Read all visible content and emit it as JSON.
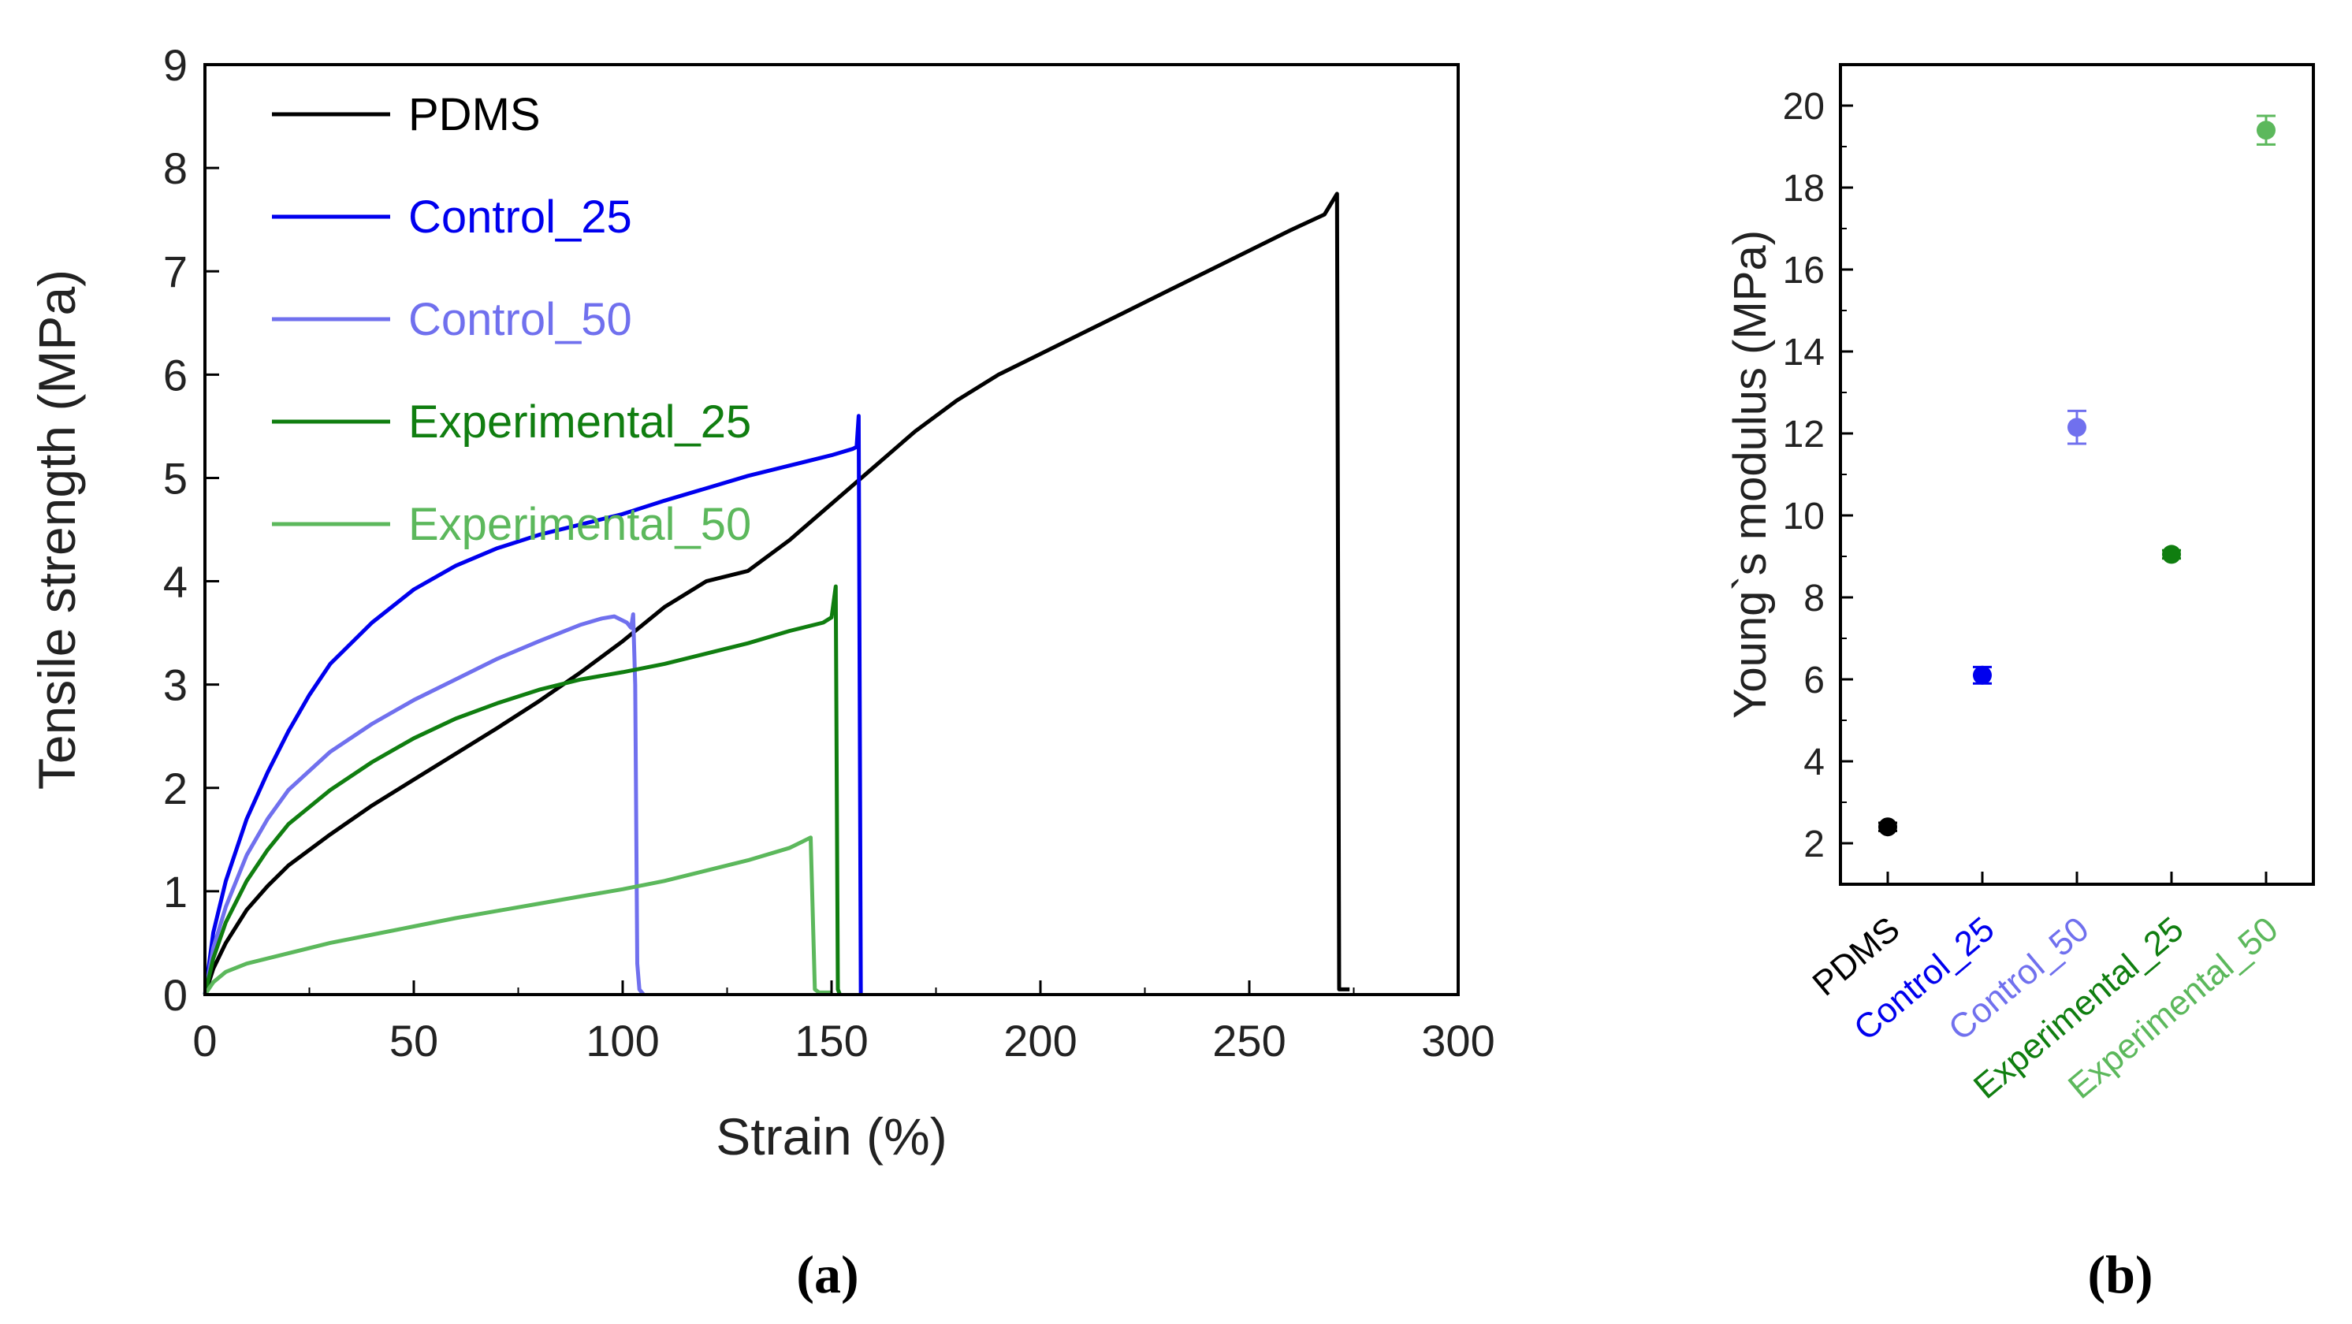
{
  "chart_data": [
    {
      "type": "line",
      "panel": "a",
      "panel_label": "(a)",
      "xlabel": "Strain (%)",
      "ylabel": "Tensile strength (MPa)",
      "xlim": [
        0,
        300
      ],
      "ylim": [
        0,
        9
      ],
      "x_ticks": [
        0,
        50,
        100,
        150,
        200,
        250,
        300
      ],
      "y_ticks": [
        0,
        1,
        2,
        3,
        4,
        5,
        6,
        7,
        8,
        9
      ],
      "grid": false,
      "legend_position": "top-left",
      "series": [
        {
          "name": "PDMS",
          "color": "#000000",
          "x": [
            0,
            2,
            5,
            10,
            15,
            20,
            30,
            40,
            50,
            60,
            70,
            80,
            90,
            100,
            110,
            120,
            130,
            140,
            150,
            160,
            170,
            180,
            190,
            200,
            210,
            220,
            230,
            240,
            250,
            260,
            268,
            271,
            271.5,
            271.5,
            274
          ],
          "y": [
            0,
            0.25,
            0.5,
            0.82,
            1.05,
            1.25,
            1.55,
            1.83,
            2.08,
            2.33,
            2.58,
            2.84,
            3.12,
            3.42,
            3.75,
            4.0,
            4.1,
            4.4,
            4.75,
            5.1,
            5.45,
            5.75,
            6.0,
            6.2,
            6.4,
            6.6,
            6.8,
            7.0,
            7.2,
            7.4,
            7.55,
            7.75,
            0.05,
            0.05,
            0.05
          ]
        },
        {
          "name": "Control_25",
          "color": "#0000ee",
          "x": [
            0,
            2,
            5,
            10,
            15,
            20,
            25,
            30,
            40,
            50,
            60,
            70,
            80,
            90,
            100,
            110,
            120,
            130,
            140,
            150,
            155,
            156,
            156.5,
            157,
            157
          ],
          "y": [
            0,
            0.6,
            1.1,
            1.7,
            2.15,
            2.55,
            2.9,
            3.2,
            3.6,
            3.92,
            4.15,
            4.32,
            4.45,
            4.55,
            4.65,
            4.78,
            4.9,
            5.02,
            5.12,
            5.22,
            5.28,
            5.3,
            5.6,
            0.05,
            0
          ]
        },
        {
          "name": "Control_50",
          "color": "#7070ee",
          "x": [
            0,
            2,
            5,
            10,
            15,
            20,
            30,
            40,
            50,
            60,
            70,
            80,
            90,
            95,
            98,
            101,
            102,
            102.5,
            103,
            103.5,
            104,
            105
          ],
          "y": [
            0,
            0.45,
            0.85,
            1.35,
            1.7,
            1.98,
            2.35,
            2.62,
            2.85,
            3.05,
            3.25,
            3.42,
            3.58,
            3.64,
            3.66,
            3.6,
            3.55,
            3.68,
            3.0,
            0.3,
            0.05,
            0
          ]
        },
        {
          "name": "Experimental_25",
          "color": "#107e10",
          "x": [
            0,
            2,
            5,
            10,
            15,
            20,
            30,
            40,
            50,
            60,
            70,
            80,
            90,
            100,
            110,
            120,
            130,
            140,
            148,
            150,
            151,
            151.5,
            152
          ],
          "y": [
            0,
            0.35,
            0.7,
            1.1,
            1.4,
            1.65,
            1.98,
            2.25,
            2.48,
            2.67,
            2.82,
            2.95,
            3.05,
            3.12,
            3.2,
            3.3,
            3.4,
            3.52,
            3.6,
            3.65,
            3.95,
            0.05,
            0
          ]
        },
        {
          "name": "Experimental_50",
          "color": "#5cb85c",
          "x": [
            0,
            2,
            5,
            10,
            20,
            30,
            40,
            50,
            60,
            70,
            80,
            90,
            100,
            110,
            120,
            130,
            140,
            143,
            145,
            146,
            147,
            150
          ],
          "y": [
            0,
            0.12,
            0.22,
            0.3,
            0.4,
            0.5,
            0.58,
            0.66,
            0.74,
            0.81,
            0.88,
            0.95,
            1.02,
            1.1,
            1.2,
            1.3,
            1.42,
            1.48,
            1.52,
            0.05,
            0.02,
            0.02
          ]
        }
      ]
    },
    {
      "type": "scatter",
      "panel": "b",
      "panel_label": "(b)",
      "xlabel": "",
      "ylabel": "Young`s modulus (MPa)",
      "ylim": [
        1,
        21
      ],
      "y_ticks": [
        2,
        4,
        6,
        8,
        10,
        12,
        14,
        16,
        18,
        20
      ],
      "grid": false,
      "categories": [
        "PDMS",
        "Control_25",
        "Control_50",
        "Experimental_25",
        "Experimental_50"
      ],
      "series": [
        {
          "name": "Young`s modulus",
          "values": [
            2.4,
            6.1,
            12.15,
            9.05,
            19.4
          ],
          "errors": [
            0.1,
            0.2,
            0.4,
            0.1,
            0.35
          ],
          "colors": [
            "#000000",
            "#0000ee",
            "#7070ee",
            "#107e10",
            "#5cb85c"
          ]
        }
      ]
    }
  ]
}
